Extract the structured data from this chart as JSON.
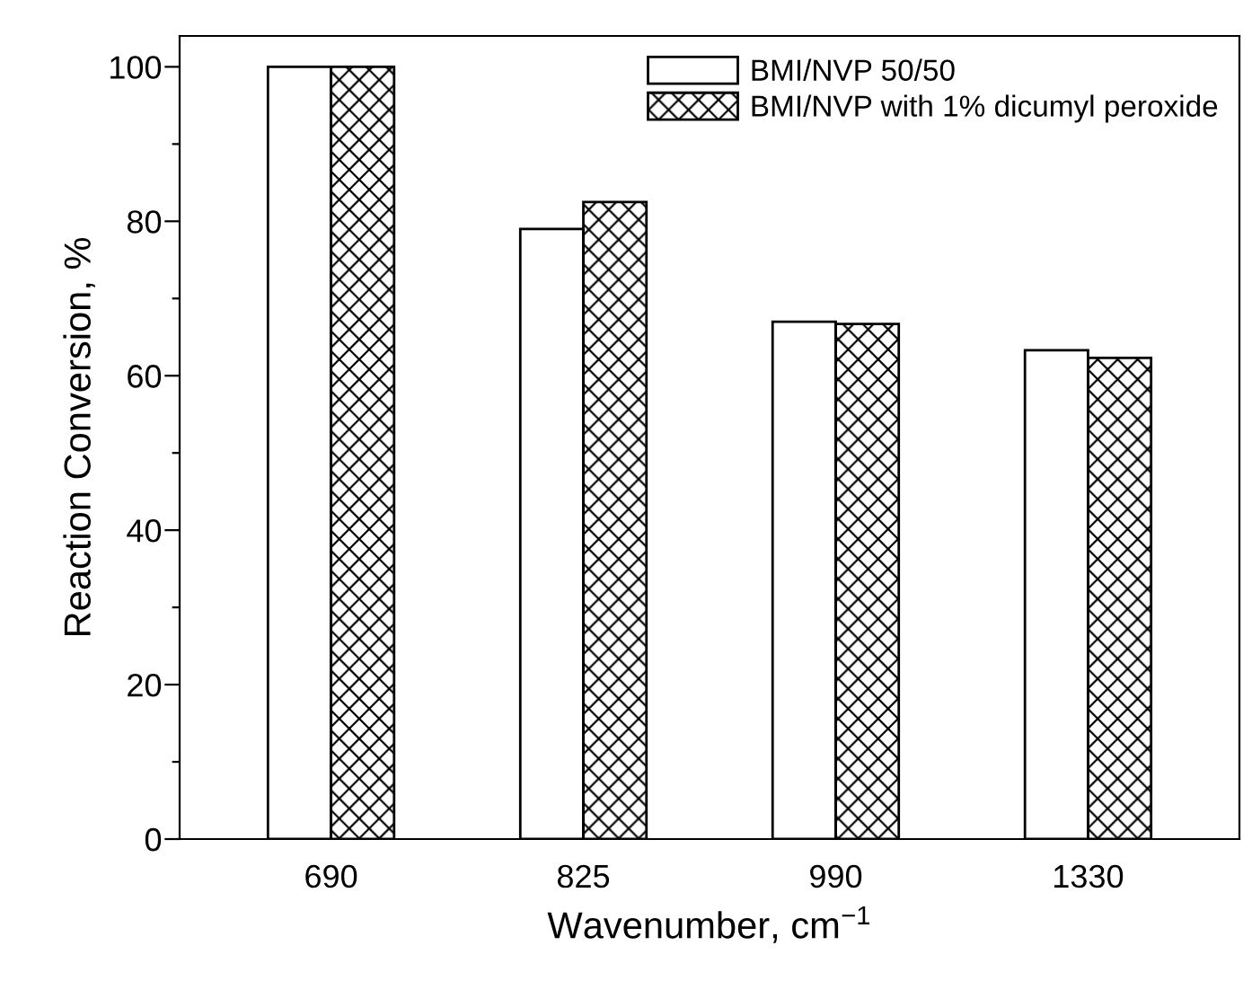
{
  "chart_data": {
    "type": "bar",
    "xlabel": "Wavenumber, cm$^{−1}$",
    "ylabel": "Reaction Conversion, %",
    "categories": [
      "690",
      "825",
      "990",
      "1330"
    ],
    "series": [
      {
        "name": "BMI/NVP 50/50",
        "color": "#ffffff",
        "values": [
          100,
          79,
          67,
          63.3
        ]
      },
      {
        "name": "BMI/NVP with 1% dicumyl peroxide",
        "color": "#000000",
        "values": [
          100,
          82.5,
          66.7,
          62.3
        ]
      }
    ],
    "ylim": [
      0,
      104
    ],
    "yticks": [
      0,
      {
        "value": 10,
        "label": null
      },
      20,
      {
        "value": 30,
        "label": null
      },
      40,
      {
        "value": 50,
        "label": null
      },
      60,
      {
        "value": 70,
        "label": null
      },
      80,
      {
        "value": 90,
        "label": null
      },
      100
    ],
    "grid": false,
    "legend": "top right"
  }
}
